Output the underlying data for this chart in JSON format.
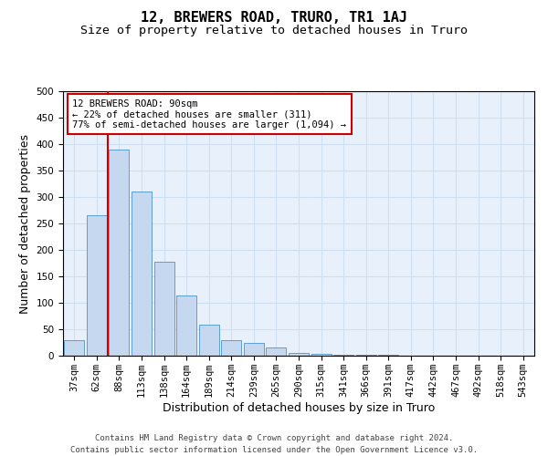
{
  "title": "12, BREWERS ROAD, TRURO, TR1 1AJ",
  "subtitle": "Size of property relative to detached houses in Truro",
  "xlabel": "Distribution of detached houses by size in Truro",
  "ylabel": "Number of detached properties",
  "bar_labels": [
    "37sqm",
    "62sqm",
    "88sqm",
    "113sqm",
    "138sqm",
    "164sqm",
    "189sqm",
    "214sqm",
    "239sqm",
    "265sqm",
    "290sqm",
    "315sqm",
    "341sqm",
    "366sqm",
    "391sqm",
    "417sqm",
    "442sqm",
    "467sqm",
    "492sqm",
    "518sqm",
    "543sqm"
  ],
  "bar_values": [
    30,
    265,
    390,
    310,
    178,
    113,
    58,
    30,
    25,
    15,
    5,
    3,
    2,
    1,
    1,
    0,
    0,
    0,
    0,
    0,
    0
  ],
  "bar_color": "#c5d8f0",
  "bar_edge_color": "#5a9fd4",
  "red_line_index": 2,
  "annotation_text": "12 BREWERS ROAD: 90sqm\n← 22% of detached houses are smaller (311)\n77% of semi-detached houses are larger (1,094) →",
  "annotation_box_color": "#ffffff",
  "annotation_box_edge_color": "#cc0000",
  "ylim": [
    0,
    500
  ],
  "yticks": [
    0,
    50,
    100,
    150,
    200,
    250,
    300,
    350,
    400,
    450,
    500
  ],
  "grid_color": "#cddff0",
  "footer_line1": "Contains HM Land Registry data © Crown copyright and database right 2024.",
  "footer_line2": "Contains public sector information licensed under the Open Government Licence v3.0.",
  "bg_color": "#e8f0fb",
  "title_fontsize": 11,
  "subtitle_fontsize": 9.5,
  "axis_label_fontsize": 9,
  "tick_fontsize": 7.5,
  "footer_fontsize": 6.5,
  "annotation_fontsize": 7.5
}
